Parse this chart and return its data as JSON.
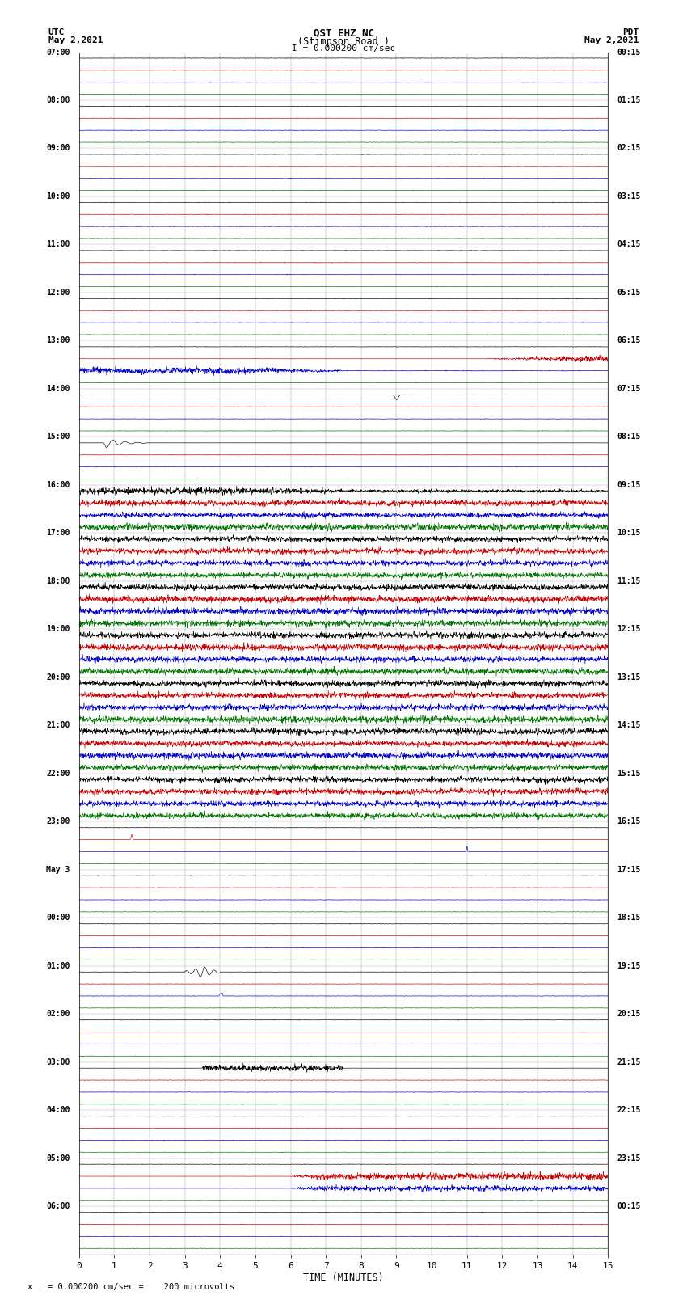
{
  "title_line1": "OST EHZ NC",
  "title_line2": "(Stimpson Road )",
  "scale_label": "I = 0.000200 cm/sec",
  "utc_label": "UTC",
  "utc_date": "May 2,2021",
  "pdt_label": "PDT",
  "pdt_date": "May 2,2021",
  "bottom_label": "x | = 0.000200 cm/sec =    200 microvolts",
  "xlabel": "TIME (MINUTES)",
  "xlim": [
    0,
    15
  ],
  "bg_color": "#ffffff",
  "trace_colors": [
    "black",
    "#cc0000",
    "#0000cc",
    "#007700"
  ],
  "left_times": [
    "07:00",
    "08:00",
    "09:00",
    "10:00",
    "11:00",
    "12:00",
    "13:00",
    "14:00",
    "15:00",
    "16:00",
    "17:00",
    "18:00",
    "19:00",
    "20:00",
    "21:00",
    "22:00",
    "23:00",
    "May 3",
    "00:00",
    "01:00",
    "02:00",
    "03:00",
    "04:00",
    "05:00",
    "06:00"
  ],
  "right_times": [
    "00:15",
    "01:15",
    "02:15",
    "03:15",
    "04:15",
    "05:15",
    "06:15",
    "07:15",
    "08:15",
    "09:15",
    "10:15",
    "11:15",
    "12:15",
    "13:15",
    "14:15",
    "15:15",
    "16:15",
    "17:15",
    "18:15",
    "19:15",
    "20:15",
    "21:15",
    "22:15",
    "23:15",
    "00:15"
  ],
  "n_groups": 25,
  "traces_per_group": 4,
  "n_pts": 1800,
  "base_amp": 0.06,
  "lw": 0.45
}
